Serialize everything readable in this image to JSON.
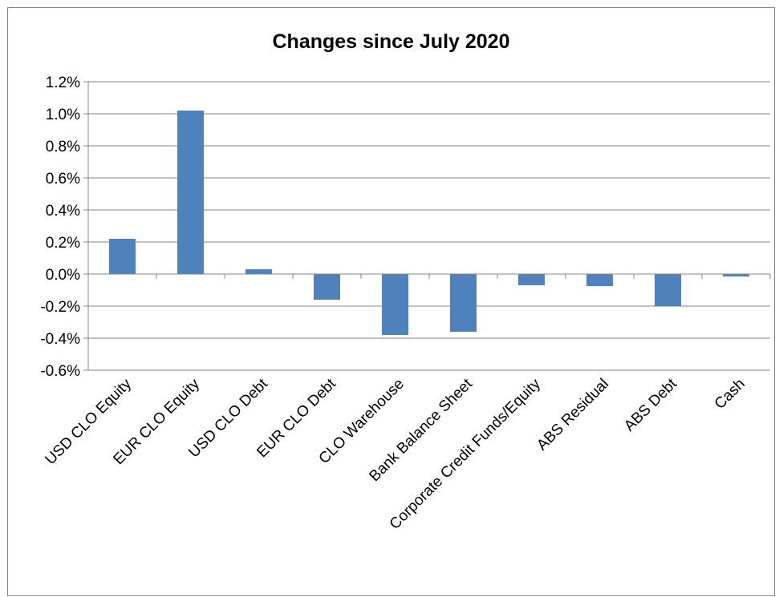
{
  "chart_data": {
    "type": "bar",
    "title": "Changes since July 2020",
    "categories": [
      "USD CLO Equity",
      "EUR CLO Equity",
      "USD CLO Debt",
      "EUR CLO Debt",
      "CLO Warehouse",
      "Bank Balance Sheet",
      "Corporate Credit Funds/Equity",
      "ABS Residual",
      "ABS Debt",
      "Cash"
    ],
    "series": [
      {
        "values": [
          0.22,
          1.02,
          0.03,
          -0.16,
          -0.38,
          -0.36,
          -0.07,
          -0.075,
          -0.2,
          -0.015
        ]
      }
    ],
    "ylim": [
      -0.6,
      1.2
    ],
    "yticks": [
      1.2,
      1.0,
      0.8,
      0.6,
      0.4,
      0.2,
      0.0,
      -0.2,
      -0.4,
      -0.6
    ],
    "ytick_labels": [
      "1.2%",
      "1.0%",
      "0.8%",
      "0.6%",
      "0.4%",
      "0.2%",
      "0.0%",
      "-0.2%",
      "-0.4%",
      "-0.6%"
    ],
    "xlabel": "",
    "ylabel": "",
    "grid": true,
    "legend": "none",
    "bar_color": "#4f81bd"
  }
}
